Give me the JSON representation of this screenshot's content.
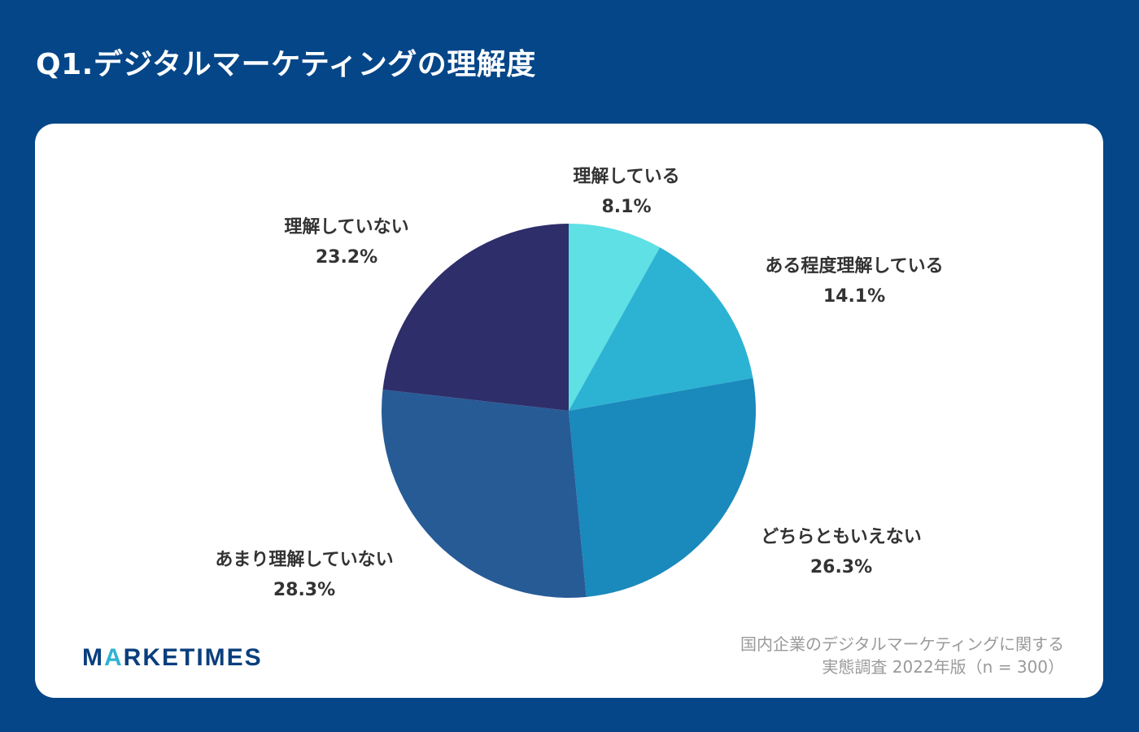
{
  "title": "Q1.デジタルマーケティングの理解度",
  "chart_data": {
    "type": "pie",
    "title": "Q1.デジタルマーケティングの理解度",
    "start_angle": "12 o'clock",
    "direction": "clockwise",
    "slices": [
      {
        "label": "理解している",
        "value": 8.1,
        "display": "8.1%",
        "color": "#5fe0e4"
      },
      {
        "label": "ある程度理解している",
        "value": 14.1,
        "display": "14.1%",
        "color": "#2cb3d3"
      },
      {
        "label": "どちらともいえない",
        "value": 26.3,
        "display": "26.3%",
        "color": "#1a89bc"
      },
      {
        "label": "あまり理解していない",
        "value": 28.3,
        "display": "28.3%",
        "color": "#275b96"
      },
      {
        "label": "理解していない",
        "value": 23.2,
        "display": "23.2%",
        "color": "#2e2e6a"
      }
    ]
  },
  "logo": {
    "prefix": "M",
    "accent": "A",
    "suffix": "RKETIMES"
  },
  "source": {
    "line1": "国内企業のデジタルマーケティングに関する",
    "line2": "実態調査 2022年版（n = 300）"
  },
  "colors": {
    "background": "#044688",
    "card": "#ffffff",
    "logo_text": "#0a3f7e",
    "logo_accent": "#2fb3d4",
    "label_text": "#333333",
    "source_text": "#9a9a9a"
  }
}
